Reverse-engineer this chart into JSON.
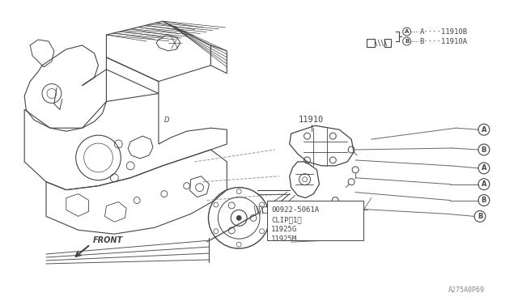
{
  "bg_color": "#ffffff",
  "line_color": "#444444",
  "fig_width": 6.4,
  "fig_height": 3.72,
  "part_numbers": {
    "label_A_legend": "A····11910B",
    "label_B_legend": "B····11910A",
    "bracket_label": "11910",
    "clip_label": "00922-5061A",
    "clip_sub": "CLIP（1）",
    "hose_label1": "11925G",
    "hose_label2": "11925M",
    "page_num": "A275A0P69"
  }
}
